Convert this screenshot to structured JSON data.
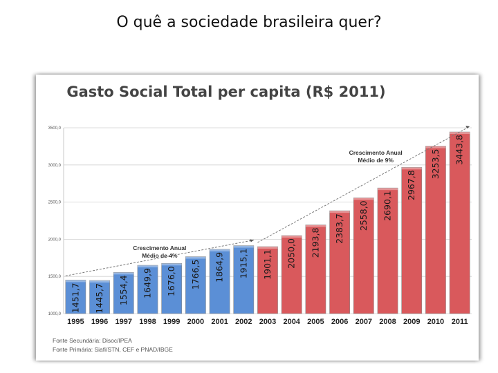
{
  "slide": {
    "title": "O quê a sociedade brasileira quer?"
  },
  "chart_data": {
    "type": "bar",
    "title": "Gasto Social Total per capita (R$ 2011)",
    "categories": [
      "1995",
      "1996",
      "1997",
      "1998",
      "1999",
      "2000",
      "2001",
      "2002",
      "2003",
      "2004",
      "2005",
      "2006",
      "2007",
      "2008",
      "2009",
      "2010",
      "2011"
    ],
    "values": [
      1451.7,
      1445.7,
      1554.4,
      1649.9,
      1676.0,
      1766.5,
      1864.9,
      1915.1,
      1901.1,
      2050.0,
      2193.8,
      2383.7,
      2558.0,
      2690.1,
      2967.8,
      3253.5,
      3443.8
    ],
    "value_labels": [
      "1451,7",
      "1445,7",
      "1554,4",
      "1649,9",
      "1676,0",
      "1766,5",
      "1864,9",
      "1915,1",
      "1901,1",
      "2050,0",
      "2193,8",
      "2383,7",
      "2558,0",
      "2690,1",
      "2967,8",
      "3253,5",
      "3443,8"
    ],
    "bar_colors": [
      "#5b8fd6",
      "#5b8fd6",
      "#5b8fd6",
      "#5b8fd6",
      "#5b8fd6",
      "#5b8fd6",
      "#5b8fd6",
      "#5b8fd6",
      "#d9595c",
      "#d9595c",
      "#d9595c",
      "#d9595c",
      "#d9595c",
      "#d9595c",
      "#d9595c",
      "#d9595c",
      "#d9595c"
    ],
    "ylim": [
      1000,
      3500
    ],
    "yticks": [
      1000,
      1500,
      2000,
      2500,
      3000,
      3500
    ],
    "ytick_labels": [
      "1000,0",
      "1500,0",
      "2000,0",
      "2500,0",
      "3000,0",
      "3500,0"
    ],
    "grid": true,
    "annotations": [
      {
        "line1": "Crescimento Anual",
        "line2": "Médio de 4%",
        "from": "1995",
        "to": "2002"
      },
      {
        "line1": "Crescimento Anual",
        "line2": "Médio de 9%",
        "from": "2003",
        "to": "2011"
      }
    ],
    "sources": [
      "Fonte Secundária: Disoc/IPEA",
      "Fonte Primária: Siafi/STN, CEF e PNAD/IBGE"
    ]
  }
}
